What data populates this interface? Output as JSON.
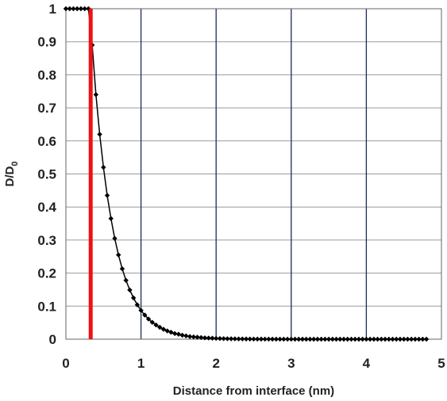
{
  "chart_data": {
    "type": "line",
    "title": "",
    "xlabel": "Distance from interface (nm)",
    "ylabel_main": "D/D",
    "ylabel_sub": "0",
    "xlim": [
      0,
      5
    ],
    "ylim": [
      0,
      1
    ],
    "x_ticks": [
      "0",
      "1",
      "2",
      "3",
      "4",
      "5"
    ],
    "y_ticks": [
      "0",
      "0.1",
      "0.2",
      "0.3",
      "0.4",
      "0.5",
      "0.6",
      "0.7",
      "0.8",
      "0.9",
      "1"
    ],
    "grid": {
      "horizontal": true,
      "vertical": true
    },
    "legend": "none",
    "series": [
      {
        "marker": "diamond",
        "color": "#000000",
        "x": [
          0,
          0.05,
          0.1,
          0.15,
          0.2,
          0.25,
          0.3,
          0.35,
          0.4,
          0.45,
          0.5,
          0.55,
          0.6,
          0.65,
          0.7,
          0.75,
          0.8,
          0.85,
          0.9,
          0.95,
          1.0,
          1.05,
          1.1,
          1.15,
          1.2,
          1.25,
          1.3,
          1.35,
          1.4,
          1.45,
          1.5,
          1.55,
          1.6,
          1.65,
          1.7,
          1.75,
          1.8,
          1.85,
          1.9,
          1.95,
          2.0,
          2.05,
          2.1,
          2.15,
          2.2,
          2.25,
          2.3,
          2.35,
          2.4,
          2.45,
          2.5,
          2.55,
          2.6,
          2.65,
          2.7,
          2.75,
          2.8,
          2.85,
          2.9,
          2.95,
          3.0,
          3.05,
          3.1,
          3.15,
          3.2,
          3.25,
          3.3,
          3.35,
          3.4,
          3.45,
          3.5,
          3.55,
          3.6,
          3.65,
          3.7,
          3.75,
          3.8,
          3.85,
          3.9,
          3.95,
          4.0,
          4.05,
          4.1,
          4.15,
          4.2,
          4.25,
          4.3,
          4.35,
          4.4,
          4.45,
          4.5,
          4.55,
          4.6,
          4.65,
          4.7,
          4.75,
          4.8
        ],
        "y": [
          1,
          1,
          1,
          1,
          1,
          1,
          1,
          0.89,
          0.74,
          0.62,
          0.52,
          0.435,
          0.365,
          0.305,
          0.255,
          0.213,
          0.178,
          0.149,
          0.125,
          0.104,
          0.087,
          0.073,
          0.061,
          0.051,
          0.043,
          0.036,
          0.03,
          0.025,
          0.021,
          0.017,
          0.015,
          0.012,
          0.01,
          0.008,
          0.007,
          0.006,
          0.005,
          0.004,
          0.0035,
          0.003,
          0.0025,
          0.002,
          0.0017,
          0.0014,
          0.0012,
          0.001,
          0.0008,
          0.0007,
          0.0006,
          0.0005,
          0.0004,
          0.0003,
          0.0003,
          0.0002,
          0.0002,
          0.0002,
          0.0001,
          0.0001,
          0.0001,
          0.0001,
          0.0001,
          0,
          0,
          0,
          0,
          0,
          0,
          0,
          0,
          0,
          0,
          0,
          0,
          0,
          0,
          0,
          0,
          0,
          0,
          0,
          0,
          0,
          0,
          0,
          0,
          0,
          0,
          0,
          0,
          0,
          0,
          0,
          0,
          0,
          0,
          0,
          0
        ]
      }
    ],
    "marker_line": {
      "x": 0.33,
      "color": "#ee1111"
    }
  }
}
